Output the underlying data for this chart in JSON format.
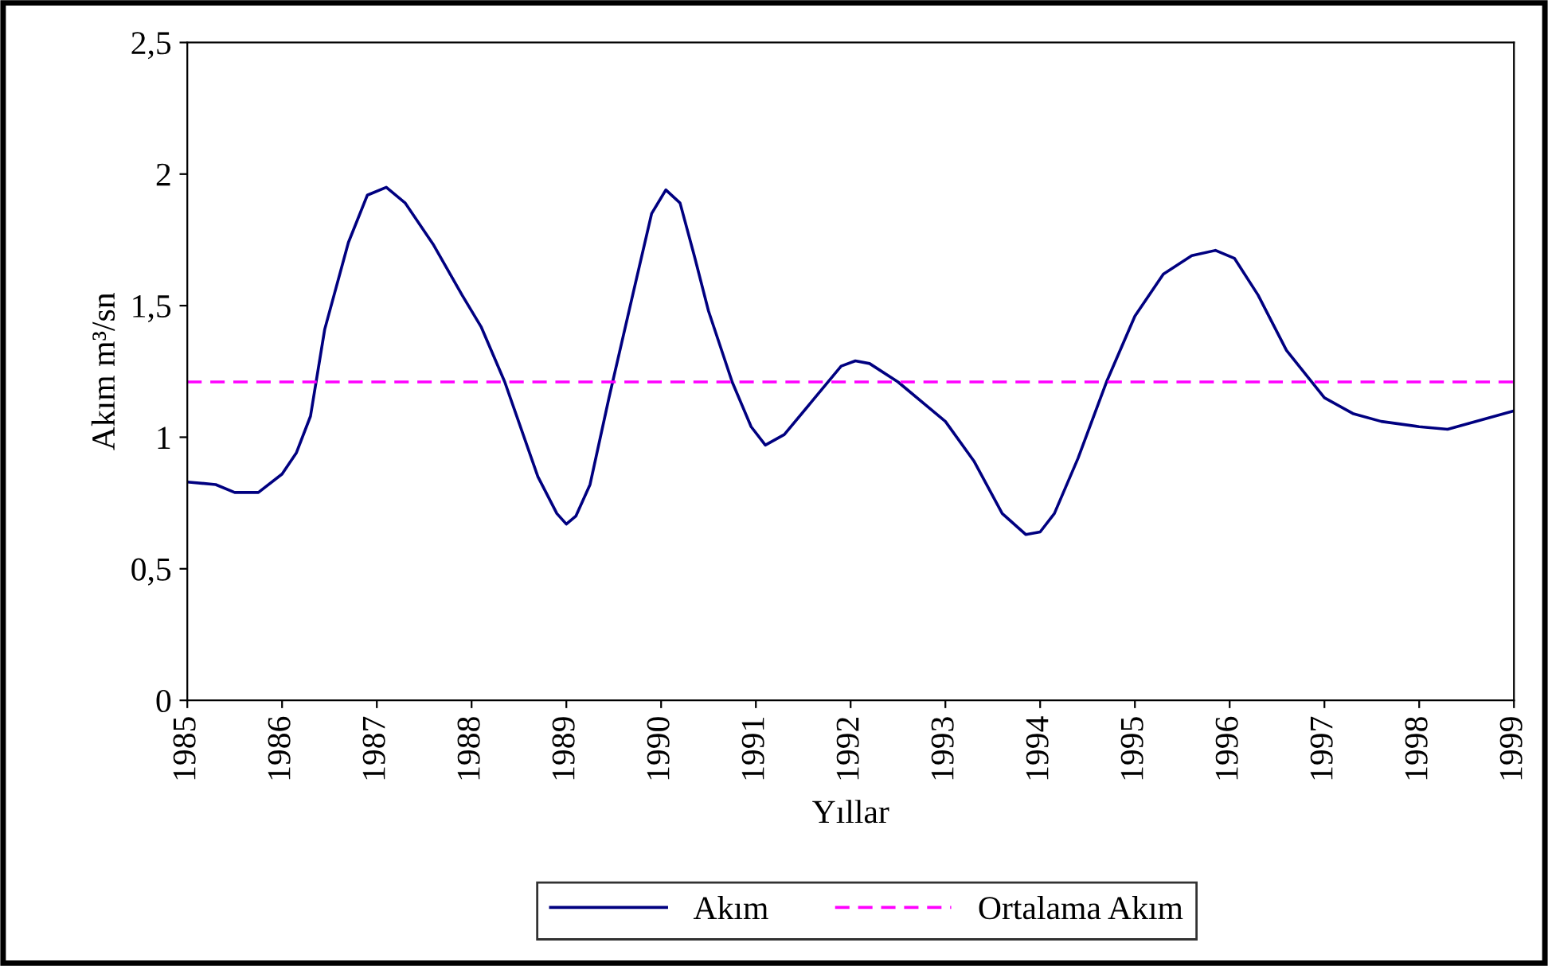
{
  "chart_data": {
    "type": "line",
    "xlabel": "Yıllar",
    "ylabel": "Akım m³/sn",
    "xlim": [
      1985,
      1999
    ],
    "xticks": [
      1985,
      1986,
      1987,
      1988,
      1989,
      1990,
      1991,
      1992,
      1993,
      1994,
      1995,
      1996,
      1997,
      1998,
      1999
    ],
    "ylim": [
      0,
      2.5
    ],
    "yticks": [
      0,
      {
        "value": 0.5,
        "label": "0,5"
      },
      1,
      {
        "value": 1.5,
        "label": "1,5"
      },
      2,
      {
        "value": 2.5,
        "label": "2,5"
      }
    ],
    "series": [
      {
        "name": "Akım",
        "color": "#000080",
        "line_style": "solid",
        "x": [
          1985.0,
          1985.3,
          1985.5,
          1985.75,
          1986.0,
          1986.15,
          1986.3,
          1986.45,
          1986.7,
          1986.9,
          1987.1,
          1987.3,
          1987.6,
          1987.9,
          1988.1,
          1988.35,
          1988.7,
          1988.9,
          1989.0,
          1989.1,
          1989.25,
          1989.45,
          1989.7,
          1989.9,
          1990.05,
          1990.2,
          1990.35,
          1990.5,
          1990.75,
          1990.95,
          1991.1,
          1991.3,
          1991.6,
          1991.9,
          1992.05,
          1992.2,
          1992.5,
          1993.0,
          1993.3,
          1993.6,
          1993.85,
          1994.0,
          1994.15,
          1994.4,
          1994.7,
          1995.0,
          1995.3,
          1995.6,
          1995.85,
          1996.05,
          1996.3,
          1996.6,
          1997.0,
          1997.3,
          1997.6,
          1998.0,
          1998.3,
          1999.0
        ],
        "values": [
          0.83,
          0.82,
          0.79,
          0.79,
          0.86,
          0.94,
          1.08,
          1.41,
          1.74,
          1.92,
          1.95,
          1.89,
          1.73,
          1.54,
          1.42,
          1.21,
          0.85,
          0.71,
          0.67,
          0.7,
          0.82,
          1.15,
          1.54,
          1.85,
          1.94,
          1.89,
          1.69,
          1.48,
          1.21,
          1.04,
          0.97,
          1.01,
          1.14,
          1.27,
          1.29,
          1.28,
          1.21,
          1.06,
          0.91,
          0.71,
          0.63,
          0.64,
          0.71,
          0.92,
          1.21,
          1.46,
          1.62,
          1.69,
          1.71,
          1.68,
          1.54,
          1.33,
          1.15,
          1.09,
          1.06,
          1.04,
          1.03,
          1.1
        ]
      },
      {
        "name": "Ortalama Akım",
        "color": "#ff00ff",
        "line_style": "dashed",
        "x": [
          1985,
          1999
        ],
        "values": [
          1.21,
          1.21
        ]
      }
    ],
    "grid": false,
    "legend": "bottom",
    "marker": "none"
  }
}
